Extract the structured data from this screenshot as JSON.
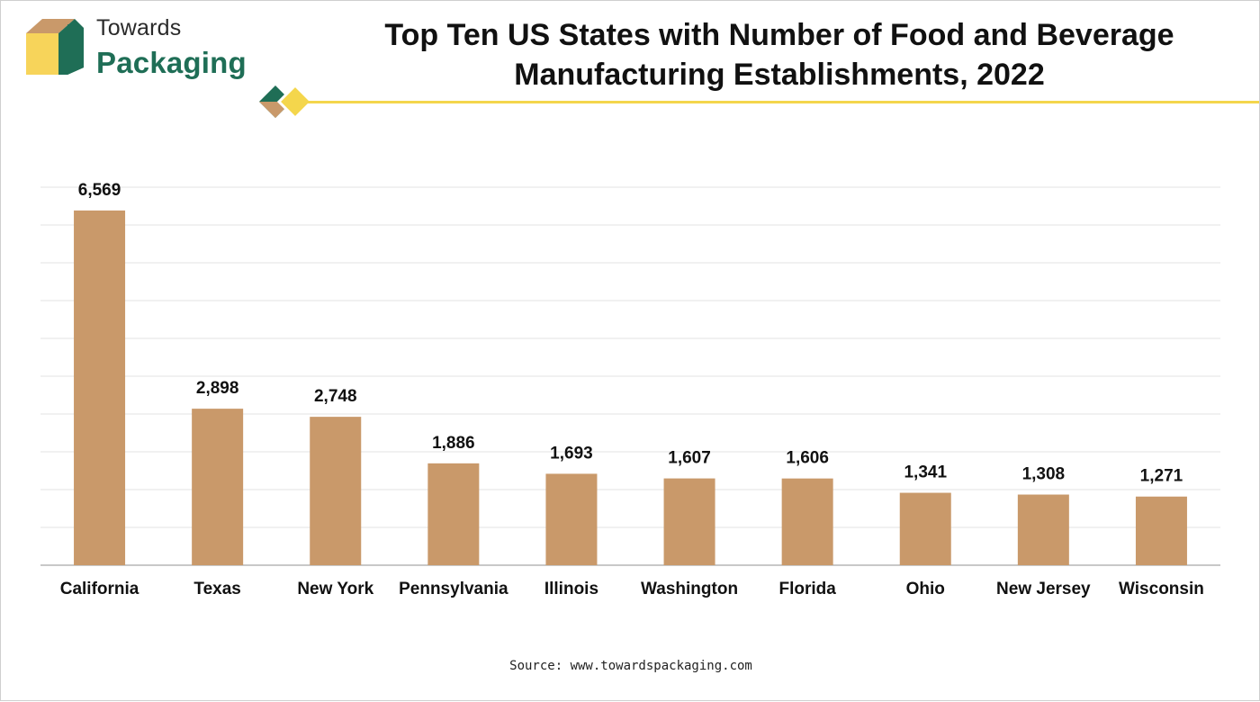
{
  "brand": {
    "line1": "Towards",
    "line2": "Packaging"
  },
  "title_line1": "Top Ten US States with Number of Food and Beverage",
  "title_line2": "Manufacturing Establishments, 2022",
  "source": "Source: www.towardspackaging.com",
  "colors": {
    "bar": "#c9996a",
    "accent_yellow": "#f4d64c",
    "accent_green": "#1f6e56",
    "grid": "#e3e3e3"
  },
  "icons": [
    "box-logo-icon",
    "diamond-divider-icon"
  ],
  "chart_data": {
    "type": "bar",
    "title": "Top Ten US States with Number of Food and Beverage Manufacturing Establishments, 2022",
    "categories": [
      "California",
      "Texas",
      "New York",
      "Pennsylvania",
      "Illinois",
      "Washington",
      "Florida",
      "Ohio",
      "New Jersey",
      "Wisconsin"
    ],
    "values": [
      6569,
      2898,
      2748,
      1886,
      1693,
      1607,
      1606,
      1341,
      1308,
      1271
    ],
    "value_labels": [
      "6,569",
      "2,898",
      "2,748",
      "1,886",
      "1,693",
      "1,607",
      "1,606",
      "1,341",
      "1,308",
      "1,271"
    ],
    "ylim": [
      0,
      7000
    ],
    "grid": true,
    "legend": "none"
  }
}
